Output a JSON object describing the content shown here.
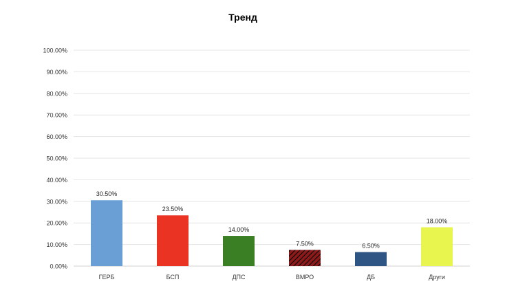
{
  "chart_data": {
    "type": "bar",
    "title": "Тренд",
    "xlabel": "",
    "ylabel": "",
    "categories": [
      "ГЕРБ",
      "БСП",
      "ДПС",
      "ВМРО",
      "ДБ",
      "Други"
    ],
    "values": [
      30.5,
      23.5,
      14.0,
      7.5,
      6.5,
      18.0
    ],
    "value_labels": [
      "30.50%",
      "23.50%",
      "14.00%",
      "7.50%",
      "6.50%",
      "18.00%"
    ],
    "ylim": [
      0,
      100
    ],
    "y_ticks": [
      0,
      10,
      20,
      30,
      40,
      50,
      60,
      70,
      80,
      90,
      100
    ],
    "y_tick_labels": [
      "0.00%",
      "10.00%",
      "20.00%",
      "30.00%",
      "40.00%",
      "50.00%",
      "60.00%",
      "70.00%",
      "80.00%",
      "90.00%",
      "100.00%"
    ],
    "grid": true,
    "legend": "none",
    "colors": [
      "#6a9fd6",
      "#ea3323",
      "#3a7f24",
      "#8b1a1a",
      "#2e5584",
      "#e9f54f"
    ],
    "patterns": [
      "solid",
      "solid",
      "solid",
      "hatched",
      "solid",
      "solid"
    ],
    "hatch_line_color": "#000000"
  }
}
